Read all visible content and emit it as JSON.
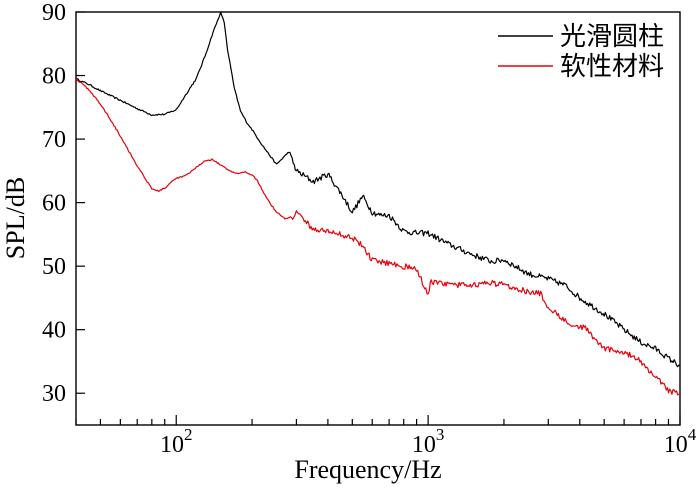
{
  "chart_data": {
    "type": "line",
    "title": "",
    "xlabel": "Frequency/Hz",
    "ylabel": "SPL/dB",
    "xscale": "log",
    "xlim": [
      40,
      10000
    ],
    "ylim": [
      25,
      90
    ],
    "grid": false,
    "legend_position": "top-right",
    "x_ticks": [
      {
        "value": 100,
        "base": "10",
        "exp": "2"
      },
      {
        "value": 1000,
        "base": "10",
        "exp": "3"
      },
      {
        "value": 10000,
        "base": "10",
        "exp": "4"
      }
    ],
    "y_ticks": [
      {
        "value": 30,
        "label": "30"
      },
      {
        "value": 40,
        "label": "40"
      },
      {
        "value": 50,
        "label": "50"
      },
      {
        "value": 60,
        "label": "60"
      },
      {
        "value": 70,
        "label": "70"
      },
      {
        "value": 80,
        "label": "80"
      },
      {
        "value": 90,
        "label": "90"
      }
    ],
    "series": [
      {
        "name": "光滑圆柱",
        "color": "#000000",
        "x": [
          40,
          45,
          50,
          60,
          70,
          80,
          90,
          100,
          110,
          120,
          130,
          140,
          150,
          155,
          160,
          170,
          180,
          190,
          200,
          220,
          250,
          280,
          300,
          350,
          400,
          450,
          500,
          550,
          600,
          650,
          700,
          800,
          900,
          1000,
          1200,
          1500,
          1800,
          2000,
          2500,
          3000,
          3500,
          4000,
          5000,
          6000,
          7000,
          8000,
          9000,
          10000
        ],
        "y": [
          79.5,
          78.6,
          77.6,
          76.1,
          74.8,
          73.8,
          73.9,
          74.6,
          77.2,
          79.5,
          83.0,
          86.8,
          89.9,
          88.4,
          84.0,
          78.0,
          74.4,
          72.7,
          71.5,
          69.0,
          66.0,
          68.0,
          65.0,
          63.3,
          64.5,
          61.5,
          58.5,
          61.0,
          58.5,
          58.0,
          58.0,
          55.5,
          55.2,
          55.2,
          53.5,
          51.8,
          50.7,
          51.0,
          48.8,
          48.0,
          47.0,
          45.0,
          42.5,
          40.0,
          38.0,
          37.0,
          35.5,
          34.3
        ]
      },
      {
        "name": "软性材料",
        "color": "#e8000b",
        "x": [
          40,
          45,
          50,
          55,
          60,
          70,
          80,
          85,
          90,
          100,
          110,
          120,
          130,
          140,
          150,
          160,
          170,
          180,
          190,
          200,
          210,
          230,
          250,
          270,
          290,
          300,
          350,
          400,
          450,
          500,
          550,
          600,
          700,
          800,
          900,
          1000,
          1020,
          1100,
          1300,
          1500,
          1800,
          2000,
          2500,
          2800,
          3000,
          3500,
          4000,
          4300,
          4500,
          5000,
          6000,
          7000,
          8000,
          9000,
          10000
        ],
        "y": [
          79.5,
          77.8,
          75.5,
          73.0,
          70.5,
          65.8,
          62.2,
          61.8,
          62.3,
          63.8,
          64.3,
          65.5,
          66.6,
          66.8,
          65.9,
          65.2,
          64.6,
          64.6,
          64.8,
          64.4,
          63.5,
          60.5,
          58.5,
          57.5,
          57.8,
          58.5,
          55.8,
          55.5,
          55.0,
          54.5,
          53.2,
          50.9,
          50.5,
          50.0,
          49.5,
          45.5,
          47.5,
          47.3,
          47.0,
          47.1,
          47.3,
          47.1,
          46.0,
          45.6,
          43.5,
          41.5,
          40.3,
          40.3,
          38.5,
          37.0,
          36.5,
          35.0,
          32.5,
          30.5,
          29.8
        ]
      }
    ]
  }
}
